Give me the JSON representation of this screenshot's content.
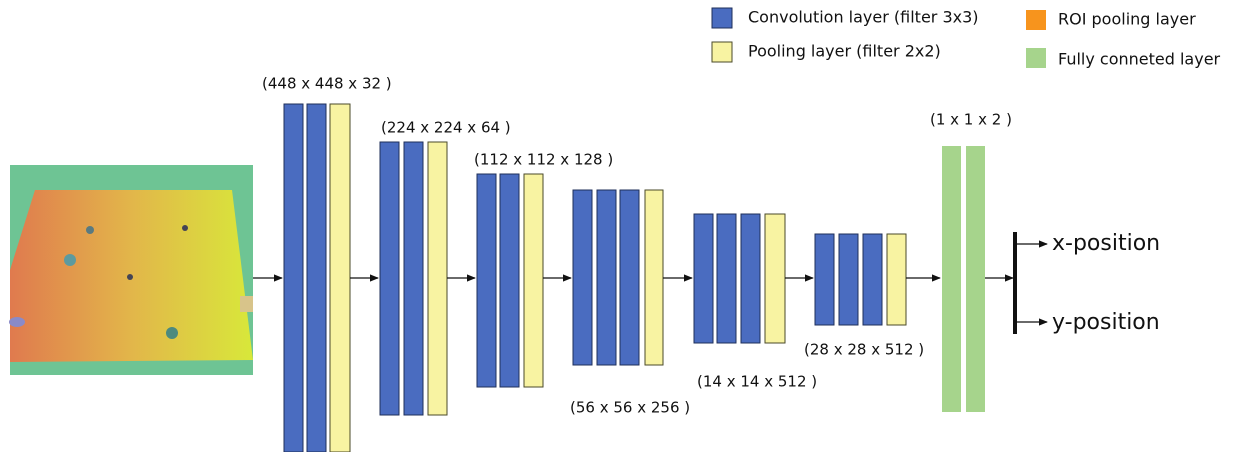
{
  "legend": [
    {
      "label": "Convolution layer (filter 3x3)"
    },
    {
      "label": "Pooling layer (filter 2x2)"
    },
    {
      "label": "ROI pooling layer"
    },
    {
      "label": "Fully conneted layer"
    }
  ],
  "layers": [
    {
      "label": "(448 x 448 x 32 )"
    },
    {
      "label": "(224 x 224 x 64 )"
    },
    {
      "label": "(112 x 112 x 128 )"
    },
    {
      "label": "(56 x 56 x 256 )"
    },
    {
      "label": "(14 x 14 x 512 )"
    },
    {
      "label": "(28 x 28 x 512 )"
    },
    {
      "label": "(1 x 1 x 2 )"
    }
  ],
  "outputs": [
    "x-position",
    "y-position"
  ]
}
